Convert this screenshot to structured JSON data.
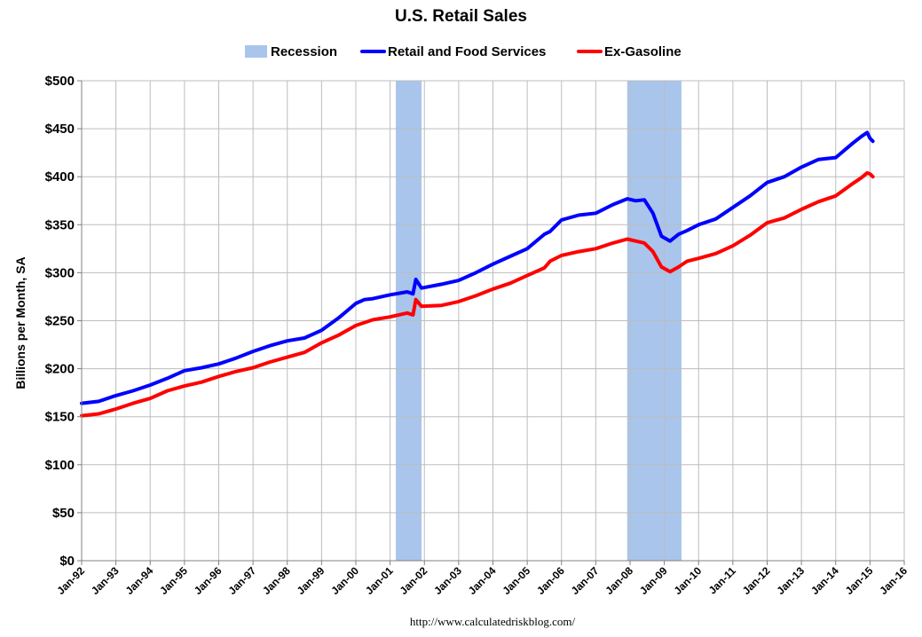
{
  "chart_data": {
    "type": "line",
    "title": "U.S. Retail Sales",
    "ylabel": "Billions per Month, SA",
    "source": "http://www.calculatedriskblog.com/",
    "ylim": [
      0,
      500
    ],
    "yticks": [
      0,
      50,
      100,
      150,
      200,
      250,
      300,
      350,
      400,
      450,
      500
    ],
    "ytick_labels": [
      "$0",
      "$50",
      "$100",
      "$150",
      "$200",
      "$250",
      "$300",
      "$350",
      "$400",
      "$450",
      "$500"
    ],
    "xlim": [
      "1992-01",
      "2016-01"
    ],
    "xtick_labels": [
      "Jan-92",
      "Jan-93",
      "Jan-94",
      "Jan-95",
      "Jan-96",
      "Jan-97",
      "Jan-98",
      "Jan-99",
      "Jan-00",
      "Jan-01",
      "Jan-02",
      "Jan-03",
      "Jan-04",
      "Jan-05",
      "Jan-06",
      "Jan-07",
      "Jan-08",
      "Jan-09",
      "Jan-10",
      "Jan-11",
      "Jan-12",
      "Jan-13",
      "Jan-14",
      "Jan-15",
      "Jan-16"
    ],
    "grid": true,
    "legend_position": "top-center",
    "recessions": [
      {
        "start": "2001-03",
        "end": "2001-11"
      },
      {
        "start": "2007-12",
        "end": "2009-06"
      }
    ],
    "legend": [
      {
        "name": "Recession",
        "kind": "band",
        "color": "#a9c5ec"
      },
      {
        "name": "Retail and Food Services",
        "kind": "line",
        "color": "#0000ff"
      },
      {
        "name": "Ex-Gasoline",
        "kind": "line",
        "color": "#ff0000"
      }
    ],
    "series": [
      {
        "name": "Retail and Food Services",
        "color": "#0000ff",
        "points": [
          [
            "1992-01",
            164
          ],
          [
            "1992-07",
            166
          ],
          [
            "1993-01",
            172
          ],
          [
            "1993-07",
            177
          ],
          [
            "1994-01",
            183
          ],
          [
            "1994-07",
            190
          ],
          [
            "1995-01",
            198
          ],
          [
            "1995-07",
            201
          ],
          [
            "1996-01",
            205
          ],
          [
            "1996-07",
            211
          ],
          [
            "1997-01",
            218
          ],
          [
            "1997-07",
            224
          ],
          [
            "1998-01",
            229
          ],
          [
            "1998-07",
            232
          ],
          [
            "1999-01",
            240
          ],
          [
            "1999-07",
            253
          ],
          [
            "2000-01",
            268
          ],
          [
            "2000-04",
            272
          ],
          [
            "2000-07",
            273
          ],
          [
            "2001-01",
            277
          ],
          [
            "2001-07",
            280
          ],
          [
            "2001-09",
            278
          ],
          [
            "2001-10",
            293
          ],
          [
            "2001-12",
            284
          ],
          [
            "2002-07",
            288
          ],
          [
            "2003-01",
            292
          ],
          [
            "2003-07",
            300
          ],
          [
            "2004-01",
            309
          ],
          [
            "2004-07",
            317
          ],
          [
            "2005-01",
            325
          ],
          [
            "2005-07",
            340
          ],
          [
            "2005-09",
            343
          ],
          [
            "2006-01",
            355
          ],
          [
            "2006-07",
            360
          ],
          [
            "2007-01",
            362
          ],
          [
            "2007-07",
            371
          ],
          [
            "2007-12",
            377
          ],
          [
            "2008-03",
            375
          ],
          [
            "2008-06",
            376
          ],
          [
            "2008-09",
            362
          ],
          [
            "2008-12",
            338
          ],
          [
            "2009-03",
            333
          ],
          [
            "2009-06",
            340
          ],
          [
            "2009-09",
            344
          ],
          [
            "2010-01",
            350
          ],
          [
            "2010-07",
            356
          ],
          [
            "2011-01",
            368
          ],
          [
            "2011-07",
            380
          ],
          [
            "2012-01",
            394
          ],
          [
            "2012-07",
            400
          ],
          [
            "2013-01",
            410
          ],
          [
            "2013-07",
            418
          ],
          [
            "2014-01",
            420
          ],
          [
            "2014-07",
            435
          ],
          [
            "2014-10",
            442
          ],
          [
            "2014-12",
            446
          ],
          [
            "2015-01",
            440
          ],
          [
            "2015-02",
            437
          ]
        ]
      },
      {
        "name": "Ex-Gasoline",
        "color": "#ff0000",
        "points": [
          [
            "1992-01",
            151
          ],
          [
            "1992-07",
            153
          ],
          [
            "1993-01",
            158
          ],
          [
            "1993-07",
            164
          ],
          [
            "1994-01",
            169
          ],
          [
            "1994-07",
            177
          ],
          [
            "1995-01",
            182
          ],
          [
            "1995-07",
            186
          ],
          [
            "1996-01",
            192
          ],
          [
            "1996-07",
            197
          ],
          [
            "1997-01",
            201
          ],
          [
            "1997-07",
            207
          ],
          [
            "1998-01",
            212
          ],
          [
            "1998-07",
            217
          ],
          [
            "1999-01",
            227
          ],
          [
            "1999-07",
            235
          ],
          [
            "2000-01",
            245
          ],
          [
            "2000-07",
            251
          ],
          [
            "2001-01",
            254
          ],
          [
            "2001-07",
            258
          ],
          [
            "2001-09",
            256
          ],
          [
            "2001-10",
            272
          ],
          [
            "2001-12",
            265
          ],
          [
            "2002-07",
            266
          ],
          [
            "2003-01",
            270
          ],
          [
            "2003-07",
            276
          ],
          [
            "2004-01",
            283
          ],
          [
            "2004-07",
            289
          ],
          [
            "2005-01",
            297
          ],
          [
            "2005-07",
            305
          ],
          [
            "2005-09",
            312
          ],
          [
            "2006-01",
            318
          ],
          [
            "2006-07",
            322
          ],
          [
            "2007-01",
            325
          ],
          [
            "2007-07",
            331
          ],
          [
            "2007-12",
            335
          ],
          [
            "2008-03",
            333
          ],
          [
            "2008-06",
            331
          ],
          [
            "2008-09",
            322
          ],
          [
            "2008-12",
            306
          ],
          [
            "2009-03",
            301
          ],
          [
            "2009-06",
            306
          ],
          [
            "2009-09",
            312
          ],
          [
            "2010-01",
            315
          ],
          [
            "2010-07",
            320
          ],
          [
            "2011-01",
            328
          ],
          [
            "2011-07",
            339
          ],
          [
            "2012-01",
            352
          ],
          [
            "2012-07",
            357
          ],
          [
            "2013-01",
            366
          ],
          [
            "2013-07",
            374
          ],
          [
            "2014-01",
            380
          ],
          [
            "2014-07",
            393
          ],
          [
            "2014-10",
            399
          ],
          [
            "2014-12",
            404
          ],
          [
            "2015-01",
            403
          ],
          [
            "2015-02",
            400
          ]
        ]
      }
    ]
  }
}
